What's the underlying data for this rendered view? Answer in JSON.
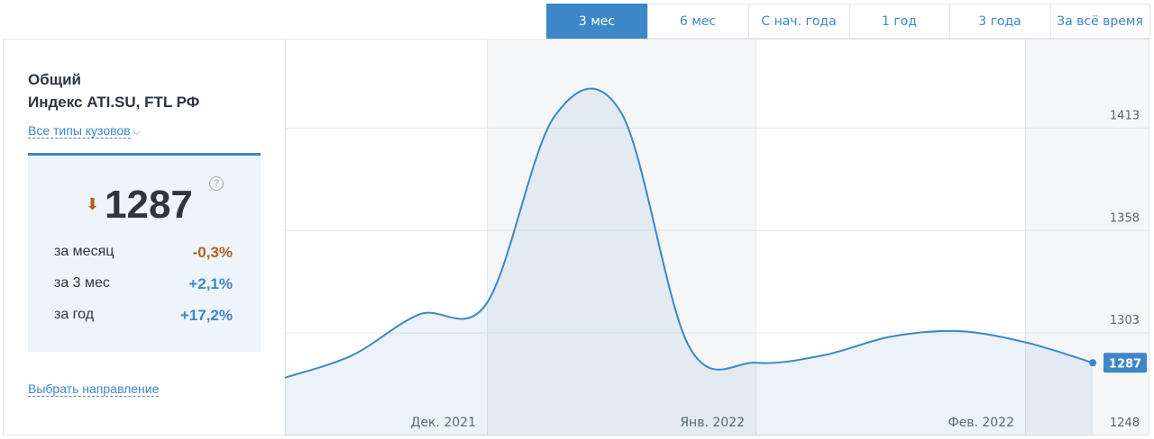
{
  "tabs": {
    "labels": [
      "3 мес",
      "6 мес",
      "С нач. года",
      "1 год",
      "3 года",
      "За всё время"
    ],
    "active": 0
  },
  "sidebar": {
    "title": "Общий",
    "subtitle": "Индекс ATI.SU, FTL РФ",
    "filter": "Все типы кузовов",
    "index_value": "1287",
    "stats": [
      [
        "за месяц",
        "-0,3%"
      ],
      [
        "за 3 мес",
        "+2,1%"
      ],
      [
        "за год",
        "+17,2%"
      ]
    ],
    "link": "Выбрать направление"
  },
  "chart_data": {
    "type": "line",
    "categories": [
      null,
      null,
      null,
      null,
      null,
      null,
      null,
      null,
      null,
      null,
      null,
      null,
      null
    ],
    "month_labels": [
      "Дек. 2021",
      "Янв. 2022",
      "Фев. 2022"
    ],
    "values": [
      1279,
      1291,
      1313,
      1319,
      1419,
      1421,
      1296,
      1287,
      1291,
      1301,
      1304,
      1298,
      1287
    ],
    "last_label": "1287",
    "color": "#3d87c8",
    "ylim": [
      1248,
      1461
    ],
    "yticks": [
      1248,
      1303,
      1358,
      1413
    ],
    "grid": true
  }
}
